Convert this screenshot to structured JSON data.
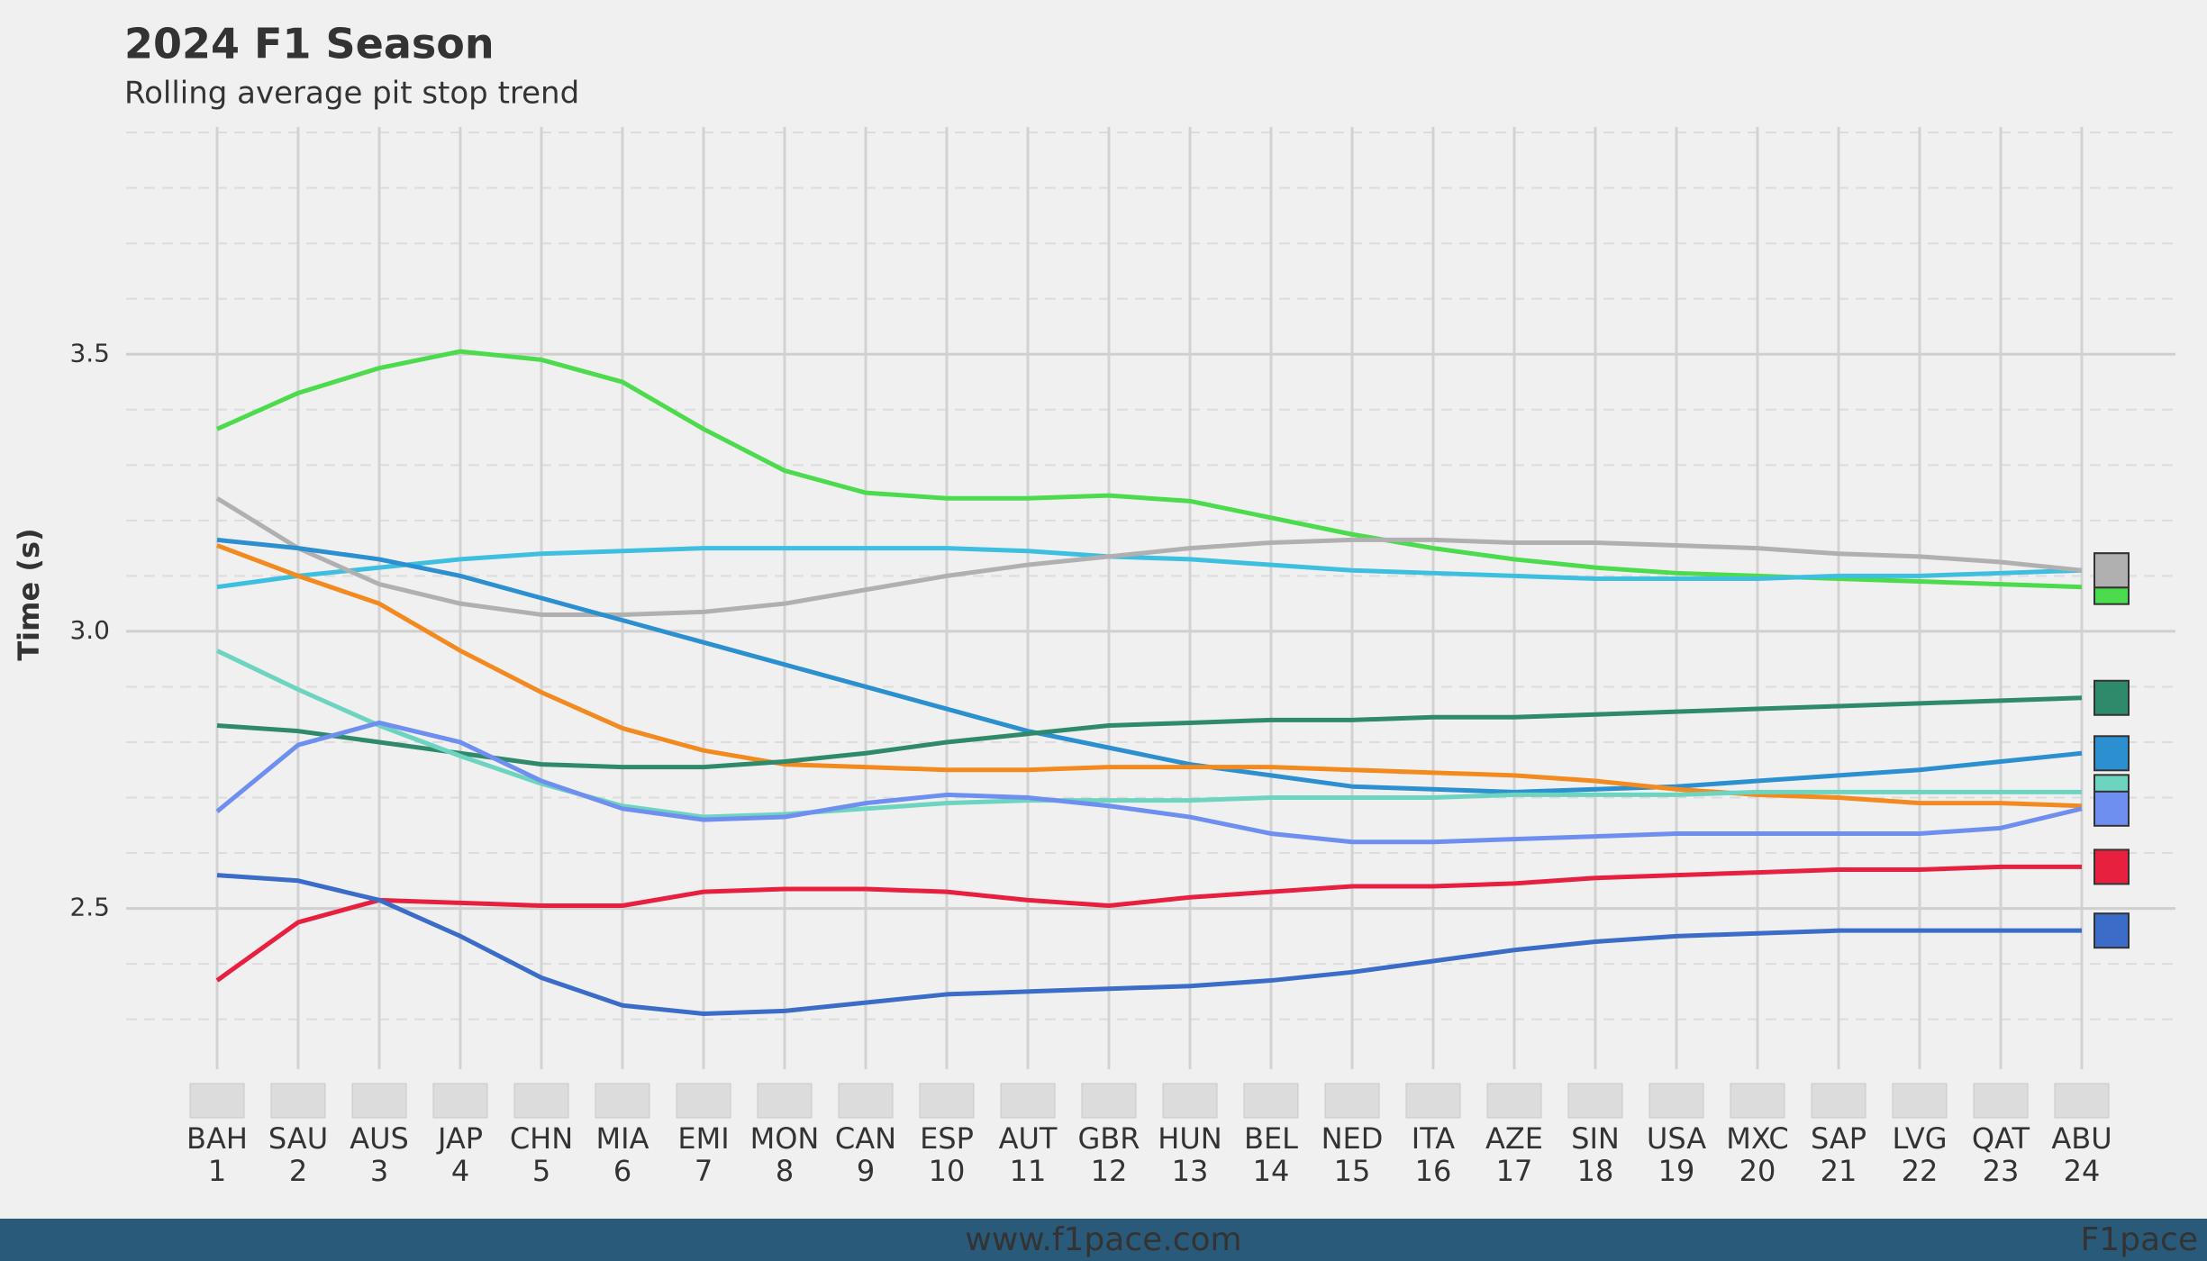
{
  "chart_data": {
    "type": "line",
    "title": "2024 F1 Season",
    "subtitle": "Rolling average pit stop trend",
    "y_label": "Time (s)",
    "categories": [
      "BAH",
      "SAU",
      "AUS",
      "JAP",
      "CHN",
      "MIA",
      "EMI",
      "MON",
      "CAN",
      "ESP",
      "AUT",
      "GBR",
      "HUN",
      "BEL",
      "NED",
      "ITA",
      "AZE",
      "SIN",
      "USA",
      "MXC",
      "SAP",
      "LVG",
      "QAT",
      "ABU"
    ],
    "rounds": [
      1,
      2,
      3,
      4,
      5,
      6,
      7,
      8,
      9,
      10,
      11,
      12,
      13,
      14,
      15,
      16,
      17,
      18,
      19,
      20,
      21,
      22,
      23,
      24
    ],
    "ylim": [
      2.21,
      3.91
    ],
    "yticks": [
      2.5,
      {
        "value": 3,
        "label": "3.0"
      },
      3.5
    ],
    "grid": true,
    "series": [
      {
        "color": "#4cdb4c",
        "values": [
          3.365,
          3.43,
          3.475,
          3.505,
          3.49,
          3.45,
          3.365,
          3.29,
          3.25,
          3.24,
          3.24,
          3.245,
          3.235,
          3.205,
          3.175,
          3.15,
          3.13,
          3.115,
          3.105,
          3.1,
          3.095,
          3.09,
          3.085,
          3.08
        ]
      },
      {
        "color": "#3ebfe0",
        "values": [
          3.08,
          3.1,
          3.115,
          3.13,
          3.14,
          3.145,
          3.15,
          3.15,
          3.15,
          3.15,
          3.145,
          3.135,
          3.13,
          3.12,
          3.11,
          3.105,
          3.1,
          3.095,
          3.095,
          3.095,
          3.1,
          3.1,
          3.105,
          3.11
        ]
      },
      {
        "color": "#b0b0b0",
        "values": [
          3.24,
          3.15,
          3.085,
          3.05,
          3.03,
          3.03,
          3.035,
          3.05,
          3.075,
          3.1,
          3.12,
          3.135,
          3.15,
          3.16,
          3.165,
          3.165,
          3.16,
          3.16,
          3.155,
          3.15,
          3.14,
          3.135,
          3.125,
          3.11
        ]
      },
      {
        "color": "#2c8fd0",
        "values": [
          3.165,
          3.15,
          3.13,
          3.1,
          3.06,
          3.02,
          2.98,
          2.94,
          2.9,
          2.86,
          2.82,
          2.79,
          2.76,
          2.74,
          2.72,
          2.715,
          2.71,
          2.715,
          2.72,
          2.73,
          2.74,
          2.75,
          2.765,
          2.78
        ]
      },
      {
        "color": "#f28a1f",
        "values": [
          3.155,
          3.1,
          3.05,
          2.965,
          2.89,
          2.825,
          2.785,
          2.76,
          2.755,
          2.75,
          2.75,
          2.755,
          2.755,
          2.755,
          2.75,
          2.745,
          2.74,
          2.73,
          2.715,
          2.705,
          2.7,
          2.69,
          2.69,
          2.685
        ]
      },
      {
        "color": "#2e8a6a",
        "values": [
          2.83,
          2.82,
          2.8,
          2.78,
          2.76,
          2.755,
          2.755,
          2.765,
          2.78,
          2.8,
          2.815,
          2.83,
          2.835,
          2.84,
          2.84,
          2.845,
          2.845,
          2.85,
          2.855,
          2.86,
          2.865,
          2.87,
          2.875,
          2.88
        ]
      },
      {
        "color": "#6dd4c0",
        "values": [
          2.965,
          2.895,
          2.83,
          2.775,
          2.725,
          2.685,
          2.665,
          2.67,
          2.68,
          2.69,
          2.695,
          2.695,
          2.695,
          2.7,
          2.7,
          2.7,
          2.705,
          2.705,
          2.705,
          2.71,
          2.71,
          2.71,
          2.71,
          2.71
        ]
      },
      {
        "color": "#6f8ff0",
        "values": [
          2.675,
          2.795,
          2.835,
          2.8,
          2.73,
          2.68,
          2.66,
          2.665,
          2.69,
          2.705,
          2.7,
          2.685,
          2.665,
          2.635,
          2.62,
          2.62,
          2.625,
          2.63,
          2.635,
          2.635,
          2.635,
          2.635,
          2.645,
          2.68
        ]
      },
      {
        "color": "#e8203f",
        "values": [
          2.37,
          2.475,
          2.515,
          2.51,
          2.505,
          2.505,
          2.53,
          2.535,
          2.535,
          2.53,
          2.515,
          2.505,
          2.52,
          2.53,
          2.54,
          2.54,
          2.545,
          2.555,
          2.56,
          2.565,
          2.57,
          2.57,
          2.575,
          2.575
        ]
      },
      {
        "color": "#3a6cc8",
        "values": [
          2.56,
          2.55,
          2.515,
          2.45,
          2.375,
          2.325,
          2.31,
          2.315,
          2.33,
          2.345,
          2.35,
          2.355,
          2.36,
          2.37,
          2.385,
          2.405,
          2.425,
          2.44,
          2.45,
          2.455,
          2.46,
          2.46,
          2.46,
          2.46
        ]
      }
    ],
    "footer": "www.f1pace.com",
    "brand": "F1pace"
  }
}
